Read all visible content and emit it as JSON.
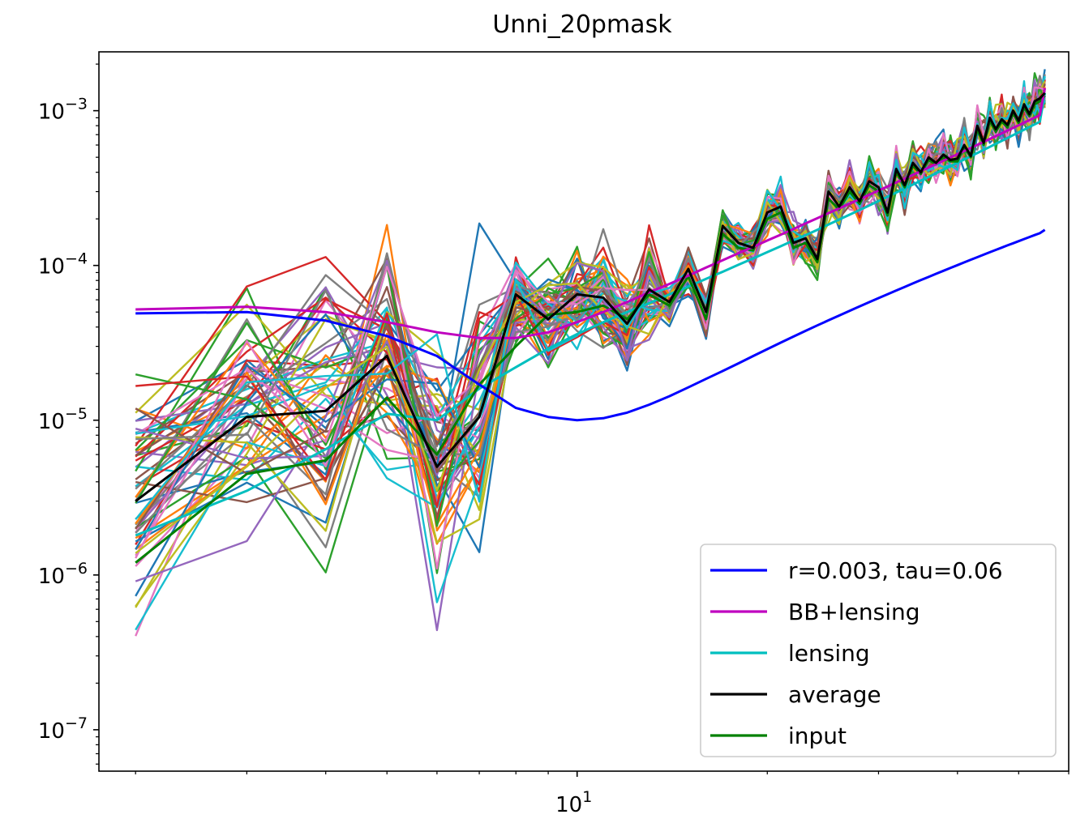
{
  "chart_data": {
    "type": "line",
    "title": "Unni_20pmask",
    "xlabel": "",
    "ylabel": "",
    "x_scale": "log",
    "y_scale": "log",
    "xlim": [
      1.75,
      60
    ],
    "ylim": [
      5.4e-08,
      0.0024
    ],
    "x_ticks": [
      {
        "value": 10,
        "base": "10",
        "exp": "1"
      }
    ],
    "y_ticks": [
      {
        "value": 1e-07,
        "base": "10",
        "exp": "−7"
      },
      {
        "value": 1e-06,
        "base": "10",
        "exp": "−6"
      },
      {
        "value": 1e-05,
        "base": "10",
        "exp": "−5"
      },
      {
        "value": 0.0001,
        "base": "10",
        "exp": "−4"
      },
      {
        "value": 0.001,
        "base": "10",
        "exp": "−3"
      }
    ],
    "grid": false,
    "legend_position": "lower right",
    "x": [
      2,
      3,
      4,
      5,
      6,
      7,
      8,
      9,
      10,
      11,
      12,
      13,
      14,
      15,
      16,
      17,
      18,
      19,
      20,
      21,
      22,
      23,
      24,
      25,
      26,
      27,
      28,
      29,
      30,
      31,
      32,
      33,
      34,
      35,
      36,
      37,
      38,
      39,
      40,
      41,
      42,
      43,
      44,
      45,
      46,
      47,
      48,
      49,
      50,
      51,
      52,
      53,
      54,
      55
    ],
    "series": [
      {
        "name": "r=0.003, tau=0.06",
        "color": "#0000ff",
        "values": [
          4.9e-05,
          5e-05,
          4.4e-05,
          3.5e-05,
          2.6e-05,
          1.7e-05,
          1.2e-05,
          1.05e-05,
          1e-05,
          1.03e-05,
          1.12e-05,
          1.26e-05,
          1.43e-05,
          1.63e-05,
          1.85e-05,
          2.08e-05,
          2.33e-05,
          2.6e-05,
          2.88e-05,
          3.17e-05,
          3.47e-05,
          3.78e-05,
          4.1e-05,
          4.42e-05,
          4.75e-05,
          5.09e-05,
          5.44e-05,
          5.79e-05,
          6.15e-05,
          6.52e-05,
          6.89e-05,
          7.27e-05,
          7.65e-05,
          8.04e-05,
          8.43e-05,
          8.83e-05,
          9.23e-05,
          9.64e-05,
          0.0001005,
          0.0001047,
          0.0001089,
          0.0001131,
          0.0001174,
          0.0001217,
          0.000126,
          0.0001304,
          0.0001348,
          0.0001392,
          0.0001436,
          0.0001481,
          0.0001526,
          0.0001571,
          0.0001616,
          0.00017
        ]
      },
      {
        "name": "BB+lensing",
        "color": "#bf00bf",
        "values": [
          5.2e-05,
          5.4e-05,
          5e-05,
          4.3e-05,
          3.7e-05,
          3.4e-05,
          3.4e-05,
          3.7e-05,
          4.3e-05,
          5e-05,
          5.8e-05,
          6.7e-05,
          7.6e-05,
          8.6e-05,
          9.7e-05,
          0.000108,
          0.00012,
          0.000132,
          0.000145,
          0.000158,
          0.000172,
          0.000187,
          0.000202,
          0.000218,
          0.000234,
          0.000251,
          0.000268,
          0.000286,
          0.000305,
          0.000324,
          0.000344,
          0.000364,
          0.000385,
          0.000407,
          0.000429,
          0.000452,
          0.000475,
          0.000499,
          0.000524,
          0.000549,
          0.000575,
          0.000602,
          0.000629,
          0.000657,
          0.000685,
          0.000714,
          0.000744,
          0.000774,
          0.000805,
          0.000837,
          0.000869,
          0.000902,
          0.000936,
          0.0014
        ]
      },
      {
        "name": "lensing",
        "color": "#00bfbf",
        "values": [
          1.8e-06,
          3.5e-06,
          6.5e-06,
          1.1e-05,
          1e-05,
          1.6e-05,
          2.2e-05,
          2.9e-05,
          3.6e-05,
          4.3e-05,
          5e-05,
          5.7e-05,
          6.5e-05,
          7.3e-05,
          8.2e-05,
          9.1e-05,
          0.000101,
          0.000111,
          0.000122,
          0.000133,
          0.000145,
          0.000157,
          0.00017,
          0.000184,
          0.000198,
          0.000213,
          0.000228,
          0.000244,
          0.000261,
          0.000278,
          0.000296,
          0.000314,
          0.000333,
          0.000353,
          0.000373,
          0.000394,
          0.000416,
          0.000438,
          0.000461,
          0.000484,
          0.000508,
          0.000533,
          0.000558,
          0.000584,
          0.000611,
          0.000638,
          0.000666,
          0.000695,
          0.000724,
          0.000754,
          0.000785,
          0.000816,
          0.000848,
          0.0013
        ]
      },
      {
        "name": "average",
        "color": "#000000",
        "values": [
          3e-06,
          1.05e-05,
          1.15e-05,
          2.6e-05,
          5e-06,
          1.05e-05,
          6.5e-05,
          4.5e-05,
          6.5e-05,
          6.2e-05,
          4.2e-05,
          7e-05,
          5.8e-05,
          9.5e-05,
          5e-05,
          0.00018,
          0.00014,
          0.00013,
          0.00022,
          0.00024,
          0.00014,
          0.00015,
          0.00011,
          0.0003,
          0.00024,
          0.00032,
          0.00026,
          0.00035,
          0.00032,
          0.00022,
          0.00042,
          0.00033,
          0.00046,
          0.0004,
          0.0005,
          0.00046,
          0.00052,
          0.00048,
          0.00049,
          0.0006,
          0.00051,
          0.0008,
          0.00062,
          0.0009,
          0.00076,
          0.00088,
          0.00081,
          0.001,
          0.00086,
          0.0011,
          0.00095,
          0.00115,
          0.0012,
          0.0013
        ]
      },
      {
        "name": "input",
        "color": "#008000",
        "values": [
          1.2e-06,
          4.5e-06,
          5.5e-06,
          1.4e-05,
          6e-06,
          1.7e-05,
          3e-05,
          4.8e-05,
          5e-05,
          5.5e-05,
          4.5e-05,
          6.5e-05,
          5.5e-05,
          8.5e-05,
          4.5e-05,
          0.00016,
          0.00013,
          0.000125,
          0.0002,
          0.00022,
          0.00013,
          0.00014,
          0.000105,
          0.00027,
          0.00023,
          0.0003,
          0.00025,
          0.00033,
          0.0003,
          0.00021,
          0.0004,
          0.00032,
          0.00044,
          0.00039,
          0.00048,
          0.00045,
          0.0005,
          0.00047,
          0.00047,
          0.00058,
          0.0005,
          0.00076,
          0.0006,
          0.00086,
          0.00073,
          0.00085,
          0.00078,
          0.00096,
          0.00083,
          0.00105,
          0.00092,
          0.0011,
          0.00115,
          0.00125
        ]
      }
    ]
  }
}
